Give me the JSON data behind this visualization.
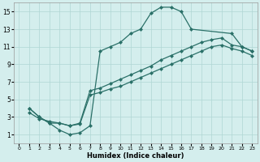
{
  "xlabel": "Humidex (Indice chaleur)",
  "xlim": [
    -0.5,
    23.5
  ],
  "ylim": [
    0,
    16
  ],
  "xticks": [
    0,
    1,
    2,
    3,
    4,
    5,
    6,
    7,
    8,
    9,
    10,
    11,
    12,
    13,
    14,
    15,
    16,
    17,
    18,
    19,
    20,
    21,
    22,
    23
  ],
  "yticks": [
    1,
    3,
    5,
    7,
    9,
    11,
    13,
    15
  ],
  "background_color": "#d4eeed",
  "grid_color": "#afd6d4",
  "line_color": "#2a7068",
  "line1_x": [
    1,
    2,
    3,
    4,
    5,
    6,
    7,
    8,
    9,
    10,
    11,
    12,
    13,
    14,
    15,
    16,
    17,
    21,
    22,
    23
  ],
  "line1_y": [
    4.0,
    3.0,
    2.3,
    1.5,
    1.0,
    1.2,
    2.0,
    10.5,
    11.0,
    11.5,
    12.5,
    13.0,
    14.8,
    15.5,
    15.5,
    15.0,
    13.0,
    12.5,
    11.0,
    10.5
  ],
  "line2_x": [
    1,
    2,
    3,
    4,
    5,
    6,
    7,
    8,
    9,
    10,
    11,
    12,
    13,
    14,
    15,
    16,
    17,
    18,
    19,
    20,
    21,
    22,
    23
  ],
  "line2_y": [
    4.0,
    3.0,
    2.3,
    2.3,
    2.0,
    2.3,
    6.0,
    6.3,
    6.8,
    7.3,
    7.8,
    8.3,
    8.8,
    9.5,
    10.0,
    10.5,
    11.0,
    11.5,
    11.8,
    12.0,
    11.2,
    11.0,
    10.5
  ],
  "line3_x": [
    1,
    2,
    3,
    4,
    5,
    6,
    7,
    8,
    9,
    10,
    11,
    12,
    13,
    14,
    15,
    16,
    17,
    18,
    19,
    20,
    21,
    22,
    23
  ],
  "line3_y": [
    3.5,
    2.8,
    2.5,
    2.3,
    2.0,
    2.2,
    5.5,
    5.8,
    6.2,
    6.5,
    7.0,
    7.5,
    8.0,
    8.5,
    9.0,
    9.5,
    10.0,
    10.5,
    11.0,
    11.2,
    10.8,
    10.5,
    10.0
  ],
  "markersize": 2.5,
  "linewidth": 0.9
}
